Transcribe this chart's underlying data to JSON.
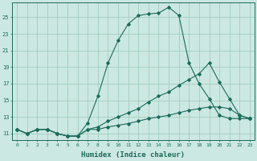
{
  "xlabel": "Humidex (Indice chaleur)",
  "bg_color": "#cce8e2",
  "grid_color": "#99c8b8",
  "line_color": "#1a6b5a",
  "x_ticks": [
    0,
    1,
    2,
    3,
    4,
    5,
    6,
    7,
    8,
    9,
    10,
    11,
    12,
    13,
    14,
    15,
    16,
    17,
    18,
    19,
    20,
    21,
    22,
    23
  ],
  "y_ticks": [
    11,
    13,
    15,
    17,
    19,
    21,
    23,
    25
  ],
  "ylim": [
    10.2,
    26.8
  ],
  "xlim": [
    -0.5,
    23.5
  ],
  "lines": [
    {
      "x": [
        0,
        1,
        2,
        3,
        4,
        5,
        6,
        7,
        8,
        9,
        10,
        11,
        12,
        13,
        14,
        15,
        16,
        17,
        18,
        19,
        20,
        21,
        22,
        23
      ],
      "y": [
        11.5,
        11.0,
        11.5,
        11.5,
        11.0,
        10.7,
        10.7,
        12.3,
        15.5,
        19.5,
        22.2,
        24.2,
        25.2,
        25.4,
        25.5,
        26.2,
        25.2,
        19.5,
        17.0,
        15.2,
        13.2,
        12.8,
        12.8,
        12.8
      ]
    },
    {
      "x": [
        0,
        1,
        2,
        3,
        4,
        5,
        6,
        7,
        8,
        9,
        10,
        11,
        12,
        13,
        14,
        15,
        16,
        17,
        18,
        19,
        20,
        21,
        22,
        23
      ],
      "y": [
        11.5,
        11.0,
        11.5,
        11.5,
        11.0,
        10.7,
        10.7,
        11.5,
        11.8,
        12.5,
        13.0,
        13.5,
        14.0,
        14.8,
        15.5,
        16.0,
        16.8,
        17.5,
        18.2,
        19.5,
        17.2,
        15.2,
        13.2,
        12.8
      ]
    },
    {
      "x": [
        0,
        1,
        2,
        3,
        4,
        5,
        6,
        7,
        8,
        9,
        10,
        11,
        12,
        13,
        14,
        15,
        16,
        17,
        18,
        19,
        20,
        21,
        22,
        23
      ],
      "y": [
        11.5,
        11.0,
        11.5,
        11.5,
        11.0,
        10.7,
        10.7,
        11.5,
        11.5,
        11.8,
        12.0,
        12.2,
        12.5,
        12.8,
        13.0,
        13.2,
        13.5,
        13.8,
        14.0,
        14.2,
        14.2,
        14.0,
        13.2,
        12.8
      ]
    }
  ]
}
